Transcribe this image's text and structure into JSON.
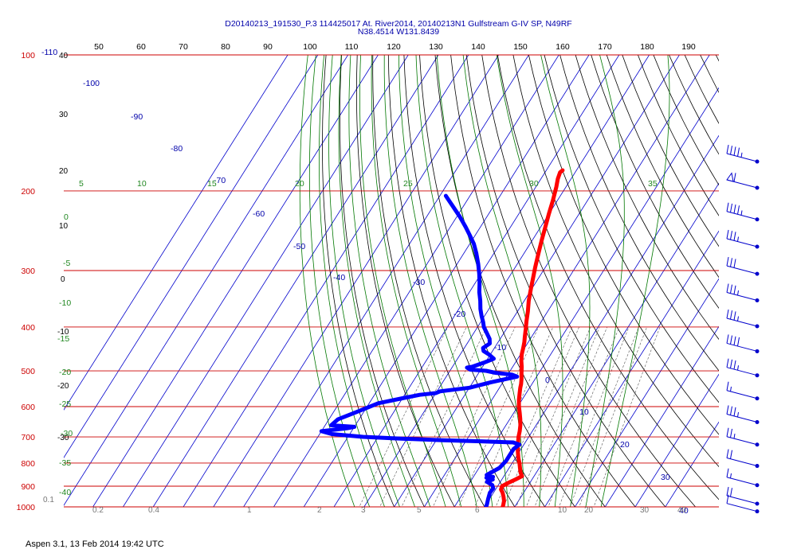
{
  "title": {
    "line1": "D20140213_191530_P.3 114425017 At. River2014, 20140213N1 Gulfstream G-IV SP, N49RF",
    "line2": "N38.4514 W131.8439"
  },
  "footer": "Aspen 3.1, 13 Feb 2014  19:42 UTC",
  "colors": {
    "isobar": "#cc0000",
    "isotherm": "#0000cc",
    "dry_adiabat": "#000000",
    "moist_adiabat": "#007700",
    "mixing_ratio": "#555555",
    "temperature": "#ff0000",
    "dewpoint": "#0000ff",
    "barb": "#0000cc"
  },
  "chart_data": {
    "type": "line",
    "diagram": "skew-T log-P",
    "pressure_levels": [
      100,
      200,
      300,
      400,
      500,
      600,
      700,
      800,
      900,
      1000
    ],
    "pressure_labels": [
      "100",
      "200",
      "300",
      "400",
      "500",
      "600",
      "700",
      "800",
      "900",
      "1000"
    ],
    "top_scale": [
      "50",
      "60",
      "70",
      "80",
      "90",
      "100",
      "110",
      "120",
      "130",
      "140",
      "150",
      "160",
      "170",
      "180",
      "190"
    ],
    "corner_label": "-110",
    "isotherm_labels": [
      "-100",
      "-90",
      "-80",
      "-70",
      "-60",
      "-50",
      "-40",
      "-30",
      "-20",
      "-10",
      "0",
      "10",
      "20",
      "30",
      "40"
    ],
    "dry_adiabat_labels": [
      "40",
      "30",
      "20",
      "10",
      "0",
      "-10",
      "-20",
      "-30"
    ],
    "moist_adiabat_labels": [
      "5",
      "10",
      "15",
      "20",
      "25",
      "30",
      "35",
      "0",
      "-5",
      "-10",
      "-15",
      "-20",
      "-25",
      "-30",
      "-35",
      "-40"
    ],
    "mixing_ratio_labels": [
      "0.1",
      "0.2",
      "0.4",
      "1",
      "2",
      "3",
      "5",
      "6",
      "10",
      "20",
      "30",
      "40"
    ],
    "series": [
      {
        "key": "temperature",
        "points": [
          [
            -44.6,
            180
          ],
          [
            -45,
            182
          ],
          [
            -44.4,
            188
          ],
          [
            -43.2,
            196
          ],
          [
            -41.5,
            210
          ],
          [
            -40,
            225
          ],
          [
            -38.5,
            240
          ],
          [
            -36.9,
            257
          ],
          [
            -35.2,
            275
          ],
          [
            -33.4,
            295
          ],
          [
            -32,
            310
          ],
          [
            -30.4,
            328
          ],
          [
            -28.5,
            350
          ],
          [
            -26.5,
            370
          ],
          [
            -25,
            388
          ],
          [
            -23.5,
            405
          ],
          [
            -22.3,
            420
          ],
          [
            -21.3,
            432
          ],
          [
            -20.4,
            446
          ],
          [
            -19.6,
            460
          ],
          [
            -18.4,
            475
          ],
          [
            -17,
            490
          ],
          [
            -15.6,
            508
          ],
          [
            -14.6,
            520
          ],
          [
            -13.6,
            535
          ],
          [
            -13.1,
            545
          ],
          [
            -12.2,
            560
          ],
          [
            -11,
            580
          ],
          [
            -9.6,
            600
          ],
          [
            -8,
            620
          ],
          [
            -6.5,
            640
          ],
          [
            -5.2,
            660
          ],
          [
            -4.2,
            680
          ],
          [
            -3.4,
            700
          ],
          [
            -2.4,
            720
          ],
          [
            -1.4,
            740
          ],
          [
            -0.2,
            760
          ],
          [
            1,
            780
          ],
          [
            2.4,
            800
          ],
          [
            3.6,
            820
          ],
          [
            4.8,
            840
          ],
          [
            6,
            855
          ],
          [
            4.5,
            870
          ],
          [
            2.8,
            885
          ],
          [
            1.5,
            900
          ],
          [
            1.8,
            915
          ],
          [
            3,
            930
          ],
          [
            4.2,
            950
          ],
          [
            5.2,
            970
          ],
          [
            5.8,
            990
          ],
          [
            6,
            1000
          ]
        ]
      },
      {
        "key": "dewpoint",
        "points": [
          [
            -78,
            205
          ],
          [
            -74,
            215
          ],
          [
            -69,
            228
          ],
          [
            -65,
            240
          ],
          [
            -61.4,
            252
          ],
          [
            -58.6,
            262
          ],
          [
            -55.8,
            275
          ],
          [
            -53,
            290
          ],
          [
            -50.6,
            305
          ],
          [
            -48.5,
            320
          ],
          [
            -46.7,
            335
          ],
          [
            -44.6,
            350
          ],
          [
            -42.8,
            365
          ],
          [
            -41,
            378
          ],
          [
            -39.2,
            390
          ],
          [
            -37.9,
            400
          ],
          [
            -36.1,
            410
          ],
          [
            -33.5,
            425
          ],
          [
            -32.5,
            435
          ],
          [
            -33.8,
            445
          ],
          [
            -33,
            452
          ],
          [
            -30.5,
            460
          ],
          [
            -28,
            470
          ],
          [
            -30.5,
            480
          ],
          [
            -33.5,
            490
          ],
          [
            -35,
            492
          ],
          [
            -33.5,
            497
          ],
          [
            -28,
            500
          ],
          [
            -24.5,
            505
          ],
          [
            -18.5,
            510
          ],
          [
            -16.5,
            515
          ],
          [
            -24,
            530
          ],
          [
            -30,
            545
          ],
          [
            -39,
            555
          ],
          [
            -40,
            560
          ],
          [
            -45,
            565
          ],
          [
            -50,
            575
          ],
          [
            -57,
            590
          ],
          [
            -62,
            615
          ],
          [
            -67,
            640
          ],
          [
            -68,
            660
          ],
          [
            -60,
            665
          ],
          [
            -62,
            670
          ],
          [
            -70,
            680
          ],
          [
            -66,
            690
          ],
          [
            -55,
            700
          ],
          [
            -45,
            705
          ],
          [
            -38,
            708
          ],
          [
            -28,
            712
          ],
          [
            -15,
            716
          ],
          [
            -4,
            720
          ],
          [
            -1.5,
            728
          ],
          [
            -2.5,
            745
          ],
          [
            -2.5,
            770
          ],
          [
            -2.5,
            790
          ],
          [
            -3.2,
            820
          ],
          [
            -6,
            850
          ],
          [
            -5.5,
            856
          ],
          [
            -3.5,
            858
          ],
          [
            -5.5,
            862
          ],
          [
            -3,
            870
          ],
          [
            -4.5,
            880
          ],
          [
            -2,
            895
          ],
          [
            -1,
            910
          ],
          [
            -1.2,
            930
          ],
          [
            -0.5,
            960
          ],
          [
            0.2,
            985
          ],
          [
            0.5,
            1000
          ]
        ]
      }
    ],
    "wind_barbs": [
      {
        "pressure": 175,
        "speed_kt": 45
      },
      {
        "pressure": 200,
        "speed_kt": 60
      },
      {
        "pressure": 235,
        "speed_kt": 45
      },
      {
        "pressure": 270,
        "speed_kt": 35
      },
      {
        "pressure": 310,
        "speed_kt": 30
      },
      {
        "pressure": 355,
        "speed_kt": 35
      },
      {
        "pressure": 405,
        "speed_kt": 35
      },
      {
        "pressure": 460,
        "speed_kt": 40
      },
      {
        "pressure": 520,
        "speed_kt": 35
      },
      {
        "pressure": 585,
        "speed_kt": 15
      },
      {
        "pressure": 660,
        "speed_kt": 35
      },
      {
        "pressure": 740,
        "speed_kt": 25
      },
      {
        "pressure": 825,
        "speed_kt": 20
      },
      {
        "pressure": 910,
        "speed_kt": 15
      },
      {
        "pressure": 1000,
        "speed_kt": 20
      },
      {
        "pressure": 1040,
        "speed_kt": 10
      }
    ],
    "xlabel": "",
    "ylabel": "",
    "ylim": [
      100,
      1000
    ],
    "log_scale_y": true,
    "grid": true
  }
}
